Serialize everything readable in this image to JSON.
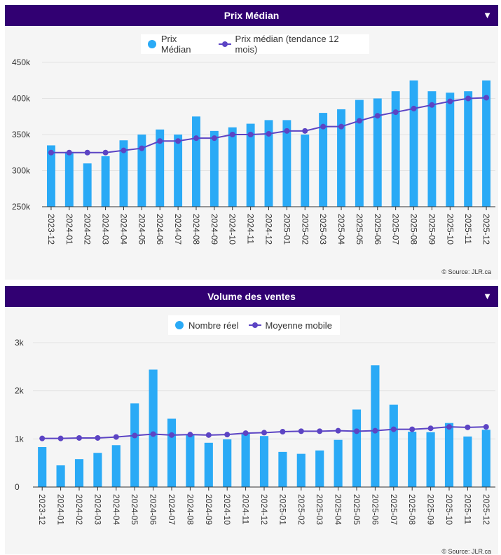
{
  "colors": {
    "header_bg": "#310072",
    "bar": "#2aaaf6",
    "line": "#5c44c4",
    "panel_bg": "#f5f5f5"
  },
  "source_text": "© Source: JLR.ca",
  "chart_data": [
    {
      "type": "bar",
      "title": "Prix Médian",
      "toggle_icon": "▼",
      "categories": [
        "2023-12",
        "2024-01",
        "2024-02",
        "2024-03",
        "2024-04",
        "2024-05",
        "2024-06",
        "2024-07",
        "2024-08",
        "2024-09",
        "2024-10",
        "2024-11",
        "2024-12",
        "2025-01",
        "2025-02",
        "2025-03",
        "2025-04",
        "2025-05",
        "2025-06",
        "2025-07",
        "2025-08",
        "2025-09",
        "2025-10",
        "2025-11",
        "2025-12"
      ],
      "series": [
        {
          "name": "Prix Médian",
          "kind": "bar",
          "values": [
            335000,
            326000,
            310000,
            320000,
            342000,
            350000,
            357000,
            350000,
            375000,
            355000,
            360000,
            365000,
            370000,
            370000,
            350000,
            380000,
            385000,
            398000,
            400000,
            410000,
            425000,
            410000,
            408000,
            410000,
            425000
          ]
        },
        {
          "name": "Prix médian (tendance 12 mois)",
          "kind": "line",
          "values": [
            325000,
            325000,
            325000,
            325000,
            328000,
            331000,
            341000,
            341000,
            345000,
            345000,
            350000,
            350000,
            351000,
            355000,
            355000,
            361000,
            361000,
            369000,
            376000,
            381000,
            386000,
            391000,
            396000,
            400000,
            401000
          ]
        }
      ],
      "ylim": [
        250000,
        450000
      ],
      "yticks": [
        250000,
        300000,
        350000,
        400000,
        450000
      ],
      "ytick_labels": [
        "250k",
        "300k",
        "350k",
        "400k",
        "450k"
      ],
      "xlabel": "",
      "ylabel": "",
      "legend_position": "top-center"
    },
    {
      "type": "bar",
      "title": "Volume des ventes",
      "toggle_icon": "▼",
      "categories": [
        "2023-12",
        "2024-01",
        "2024-02",
        "2024-03",
        "2024-04",
        "2024-05",
        "2024-06",
        "2024-07",
        "2024-08",
        "2024-09",
        "2024-10",
        "2024-11",
        "2024-12",
        "2025-01",
        "2025-02",
        "2025-03",
        "2025-04",
        "2025-05",
        "2025-06",
        "2025-07",
        "2025-08",
        "2025-09",
        "2025-10",
        "2025-11",
        "2025-12"
      ],
      "series": [
        {
          "name": "Nombre réel",
          "kind": "bar",
          "values": [
            830,
            450,
            580,
            710,
            870,
            1740,
            2440,
            1420,
            1100,
            920,
            990,
            1130,
            1060,
            730,
            690,
            760,
            980,
            1610,
            2530,
            1710,
            1150,
            1140,
            1330,
            1050,
            1190
          ]
        },
        {
          "name": "Moyenne mobile",
          "kind": "line",
          "values": [
            1010,
            1010,
            1020,
            1020,
            1040,
            1070,
            1100,
            1080,
            1090,
            1080,
            1090,
            1120,
            1130,
            1150,
            1160,
            1160,
            1170,
            1160,
            1170,
            1200,
            1200,
            1220,
            1250,
            1240,
            1250
          ]
        }
      ],
      "ylim": [
        0,
        3000
      ],
      "yticks": [
        0,
        1000,
        2000,
        3000
      ],
      "ytick_labels": [
        "0",
        "1k",
        "2k",
        "3k"
      ],
      "xlabel": "",
      "ylabel": "",
      "legend_position": "top-center"
    }
  ]
}
